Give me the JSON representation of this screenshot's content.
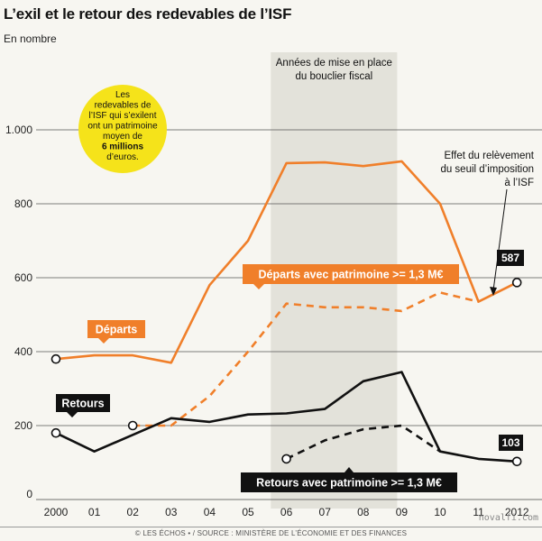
{
  "header": {
    "title": "L’exil et le retour des redevables de l’ISF",
    "subtitle": "En nombre"
  },
  "footer": {
    "source": "© LES ÉCHOS • / SOURCE : MINISTÈRE DE L’ÉCONOMIE ET DES FINANCES",
    "watermark": "novalfi.com"
  },
  "colors": {
    "orange": "#f07f2a",
    "black": "#111111",
    "shade": "#e3e2da",
    "callout_yellow": "#f5e31a",
    "background": "#f7f6f1"
  },
  "chart_data": {
    "type": "line",
    "title": "L’exil et le retour des redevables de l’ISF",
    "subtitle": "En nombre",
    "categories": [
      "2000",
      "01",
      "02",
      "03",
      "04",
      "05",
      "06",
      "07",
      "08",
      "09",
      "10",
      "11",
      "2012"
    ],
    "ylim": [
      0,
      1000
    ],
    "yticks": [
      0,
      200,
      400,
      600,
      800,
      1000
    ],
    "ytick_labels": [
      "0",
      "200",
      "400",
      "600",
      "800",
      "1.000"
    ],
    "grid": true,
    "series": [
      {
        "name": "Départs",
        "color": "#f07f2a",
        "style": "solid",
        "values": [
          380,
          390,
          390,
          370,
          580,
          700,
          910,
          912,
          902,
          915,
          800,
          535,
          587
        ]
      },
      {
        "name": "Départs avec patrimoine >= 1,3 M€",
        "color": "#f07f2a",
        "style": "dashed",
        "values": [
          null,
          null,
          200,
          200,
          280,
          400,
          530,
          520,
          520,
          510,
          560,
          535,
          null
        ]
      },
      {
        "name": "Retours",
        "color": "#111111",
        "style": "solid",
        "values": [
          180,
          130,
          175,
          220,
          210,
          230,
          233,
          245,
          320,
          345,
          130,
          110,
          103
        ]
      },
      {
        "name": "Retours avec patrimoine >= 1,3 M€",
        "color": "#111111",
        "style": "dashed",
        "values": [
          null,
          null,
          null,
          null,
          null,
          null,
          110,
          160,
          190,
          200,
          130,
          null,
          null
        ]
      }
    ],
    "markers": [
      {
        "series": 0,
        "index": 0
      },
      {
        "series": 0,
        "index": 12
      },
      {
        "series": 1,
        "index": 2
      },
      {
        "series": 2,
        "index": 0
      },
      {
        "series": 2,
        "index": 12
      },
      {
        "series": 3,
        "index": 6
      }
    ],
    "shaded_period": {
      "from": "06",
      "to": "09",
      "label_line1": "Années de mise en place",
      "label_line2": "du bouclier fiscal"
    },
    "end_labels": {
      "departs": "587",
      "retours": "103"
    },
    "series_labels": {
      "departs": "Départs",
      "retours": "Retours",
      "departs_patrimoine": "Départs avec patrimoine >= 1,3 M€",
      "retours_patrimoine": "Retours avec patrimoine >= 1,3 M€"
    },
    "callout": {
      "lines": [
        "Les",
        "redevables de",
        "l’ISF qui s’exilent",
        "ont un patrimoine",
        "moyen de"
      ],
      "bold_line": "6 millions",
      "last_line": "d’euros."
    },
    "annotation": {
      "lines": [
        "Effet du relèvement",
        "du seuil d’imposition",
        "à l’ISF"
      ]
    }
  }
}
